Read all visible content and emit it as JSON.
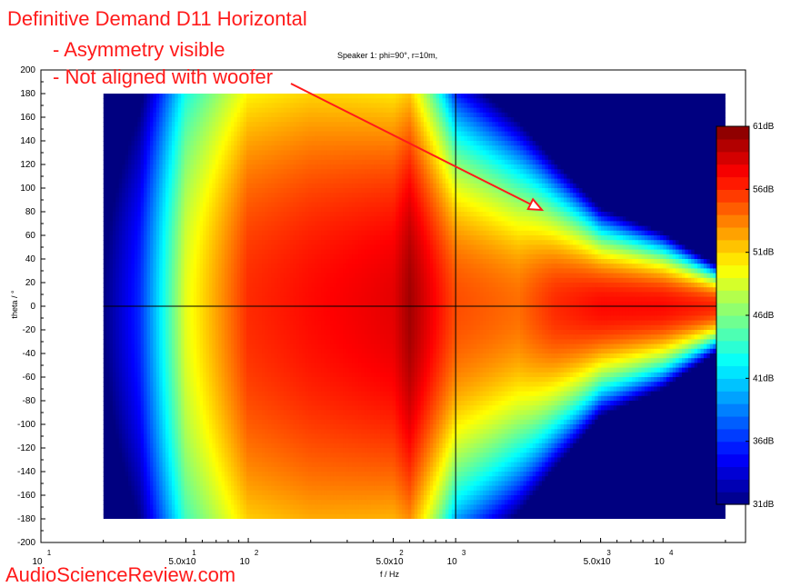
{
  "annotations": {
    "line1": "Definitive Demand D11 Horizontal",
    "line2": "- Asymmetry visible",
    "line3": "- Not aligned with woofer",
    "watermark": "AudioScienceReview.com"
  },
  "colors": {
    "annotation": "#ff1a1a",
    "arrow": "#ff1a1a"
  },
  "chart_data": {
    "type": "heatmap",
    "title": "Speaker 1: phi=90°, r=10m,",
    "xlabel": "f / Hz",
    "ylabel": "theta / °",
    "x_scale": "log",
    "xlim": [
      10,
      25000
    ],
    "ylim": [
      -200,
      200
    ],
    "data_xlim": [
      20,
      20000
    ],
    "data_ylim": [
      -180,
      180
    ],
    "x_ticks": [
      {
        "value": 10,
        "label_main": "10",
        "label_exp": "1"
      },
      {
        "value": 50,
        "label_main": "5.0x10",
        "label_exp": "1"
      },
      {
        "value": 100,
        "label_main": "10",
        "label_exp": "2"
      },
      {
        "value": 500,
        "label_main": "5.0x10",
        "label_exp": "2"
      },
      {
        "value": 1000,
        "label_main": "10",
        "label_exp": "3"
      },
      {
        "value": 5000,
        "label_main": "5.0x10",
        "label_exp": "3"
      },
      {
        "value": 10000,
        "label_main": "10",
        "label_exp": "4"
      }
    ],
    "y_ticks": [
      200,
      180,
      160,
      140,
      120,
      100,
      80,
      60,
      40,
      20,
      0,
      -20,
      -40,
      -60,
      -80,
      -100,
      -120,
      -140,
      -160,
      -180,
      -200
    ],
    "crosshair": {
      "x": 1000,
      "y": 0
    },
    "colorbar": {
      "min": 31,
      "max": 61,
      "ticks": [
        61,
        56,
        51,
        46,
        41,
        36,
        31
      ],
      "unit": "dB",
      "colormap": "jet"
    },
    "approx_levels_dB": {
      "frequencies_hz": [
        20,
        30,
        50,
        100,
        200,
        500,
        600,
        1000,
        2000,
        3000,
        5000,
        10000,
        20000
      ],
      "on_axis": [
        31,
        36,
        49,
        56,
        57,
        58,
        60,
        55,
        54,
        56,
        57,
        57,
        56
      ],
      "half_width_6dB_deg": [
        180,
        180,
        180,
        180,
        180,
        160,
        150,
        100,
        80,
        60,
        40,
        30,
        15
      ]
    }
  }
}
